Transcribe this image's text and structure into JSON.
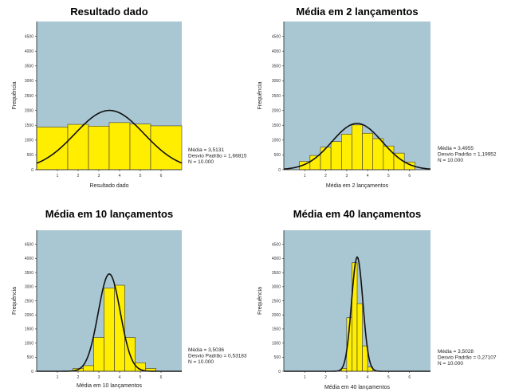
{
  "chart_data": [
    {
      "type": "bar",
      "title": "Resultado dado",
      "xlabel": "Resultado dado",
      "ylabel": "Frequência",
      "xlim": [
        0,
        7
      ],
      "ylim": [
        0,
        5000
      ],
      "y_ticks": [
        0,
        500,
        1000,
        1500,
        2000,
        2500,
        3000,
        3500,
        4000,
        4500
      ],
      "x_ticks": [
        1,
        2,
        3,
        4,
        5,
        6
      ],
      "bins": [
        {
          "start": 0.0,
          "end": 1.5,
          "count": 1440
        },
        {
          "start": 1.5,
          "end": 2.5,
          "count": 1530
        },
        {
          "start": 2.5,
          "end": 3.5,
          "count": 1470
        },
        {
          "start": 3.5,
          "end": 4.5,
          "count": 1590
        },
        {
          "start": 4.5,
          "end": 5.5,
          "count": 1540
        },
        {
          "start": 5.5,
          "end": 7.0,
          "count": 1480
        }
      ],
      "normal_curve": {
        "mean": 3.5131,
        "sd": 1.66815,
        "peak": 2000
      },
      "stats": [
        "Média = 3,5131",
        "Desvio Padrão = 1,66815",
        "N = 10.000"
      ],
      "plot_bg": "#a9c6d3",
      "bar_color": "#ffee00"
    },
    {
      "type": "bar",
      "title": "Média em 2 lançamentos",
      "xlabel": "Média em 2 lançamentos",
      "ylabel": "Frequência",
      "xlim": [
        0,
        7
      ],
      "ylim": [
        0,
        5000
      ],
      "y_ticks": [
        0,
        500,
        1000,
        1500,
        2000,
        2500,
        3000,
        3500,
        4000,
        4500
      ],
      "x_ticks": [
        1,
        2,
        3,
        4,
        5,
        6
      ],
      "bins": [
        {
          "start": 0.75,
          "end": 1.25,
          "count": 280
        },
        {
          "start": 1.25,
          "end": 1.75,
          "count": 480
        },
        {
          "start": 1.75,
          "end": 2.25,
          "count": 760
        },
        {
          "start": 2.25,
          "end": 2.75,
          "count": 950
        },
        {
          "start": 2.75,
          "end": 3.25,
          "count": 1200
        },
        {
          "start": 3.25,
          "end": 3.75,
          "count": 1510
        },
        {
          "start": 3.75,
          "end": 4.25,
          "count": 1230
        },
        {
          "start": 4.25,
          "end": 4.75,
          "count": 1050
        },
        {
          "start": 4.75,
          "end": 5.25,
          "count": 800
        },
        {
          "start": 5.25,
          "end": 5.75,
          "count": 560
        },
        {
          "start": 5.75,
          "end": 6.25,
          "count": 260
        }
      ],
      "normal_curve": {
        "mean": 3.4955,
        "sd": 1.19952,
        "peak": 1560
      },
      "stats": [
        "Média = 3,4955",
        "Desvio Padrão = 1,19952",
        "N = 10.000"
      ],
      "plot_bg": "#a9c6d3",
      "bar_color": "#ffee00"
    },
    {
      "type": "bar",
      "title": "Média em 10 lançamentos",
      "xlabel": "Média em 10 lançamentos",
      "ylabel": "Frequência",
      "xlim": [
        0,
        7
      ],
      "ylim": [
        0,
        5000
      ],
      "y_ticks": [
        0,
        500,
        1000,
        1500,
        2000,
        2500,
        3000,
        3500,
        4000,
        4500
      ],
      "x_ticks": [
        1,
        2,
        3,
        4,
        5,
        6
      ],
      "bins": [
        {
          "start": 1.75,
          "end": 2.25,
          "count": 100
        },
        {
          "start": 2.25,
          "end": 2.75,
          "count": 200
        },
        {
          "start": 2.75,
          "end": 3.25,
          "count": 1200
        },
        {
          "start": 3.25,
          "end": 3.75,
          "count": 2950
        },
        {
          "start": 3.75,
          "end": 4.25,
          "count": 3050
        },
        {
          "start": 4.25,
          "end": 4.75,
          "count": 1200
        },
        {
          "start": 4.75,
          "end": 5.25,
          "count": 300
        },
        {
          "start": 5.25,
          "end": 5.75,
          "count": 100
        }
      ],
      "normal_curve": {
        "mean": 3.5036,
        "sd": 0.53183,
        "peak": 3450
      },
      "stats": [
        "Média = 3,5036",
        "Desvio Padrão = 0,53183",
        "N = 10.000"
      ],
      "plot_bg": "#a9c6d3",
      "bar_color": "#ffee00"
    },
    {
      "type": "bar",
      "title": "Média em 40 lançamentos",
      "xlabel": "Média em 40 lançamentos",
      "ylabel": "Frequência",
      "xlim": [
        0,
        7
      ],
      "ylim": [
        0,
        5000
      ],
      "y_ticks": [
        0,
        500,
        1000,
        1500,
        2000,
        2500,
        3000,
        3500,
        4000,
        4500
      ],
      "x_ticks": [
        1,
        2,
        3,
        4,
        5,
        6
      ],
      "bins": [
        {
          "start": 2.75,
          "end": 3.0,
          "count": 100
        },
        {
          "start": 3.0,
          "end": 3.25,
          "count": 1900
        },
        {
          "start": 3.25,
          "end": 3.5,
          "count": 3850
        },
        {
          "start": 3.5,
          "end": 3.75,
          "count": 2400
        },
        {
          "start": 3.75,
          "end": 4.0,
          "count": 900
        },
        {
          "start": 4.0,
          "end": 4.25,
          "count": 150
        }
      ],
      "normal_curve": {
        "mean": 3.5028,
        "sd": 0.27107,
        "peak": 4050
      },
      "stats": [
        "Média = 3,5028",
        "Desvio Padrão = 0,27107",
        "N = 10.000"
      ],
      "plot_bg": "#a9c6d3",
      "bar_color": "#ffee00"
    }
  ]
}
